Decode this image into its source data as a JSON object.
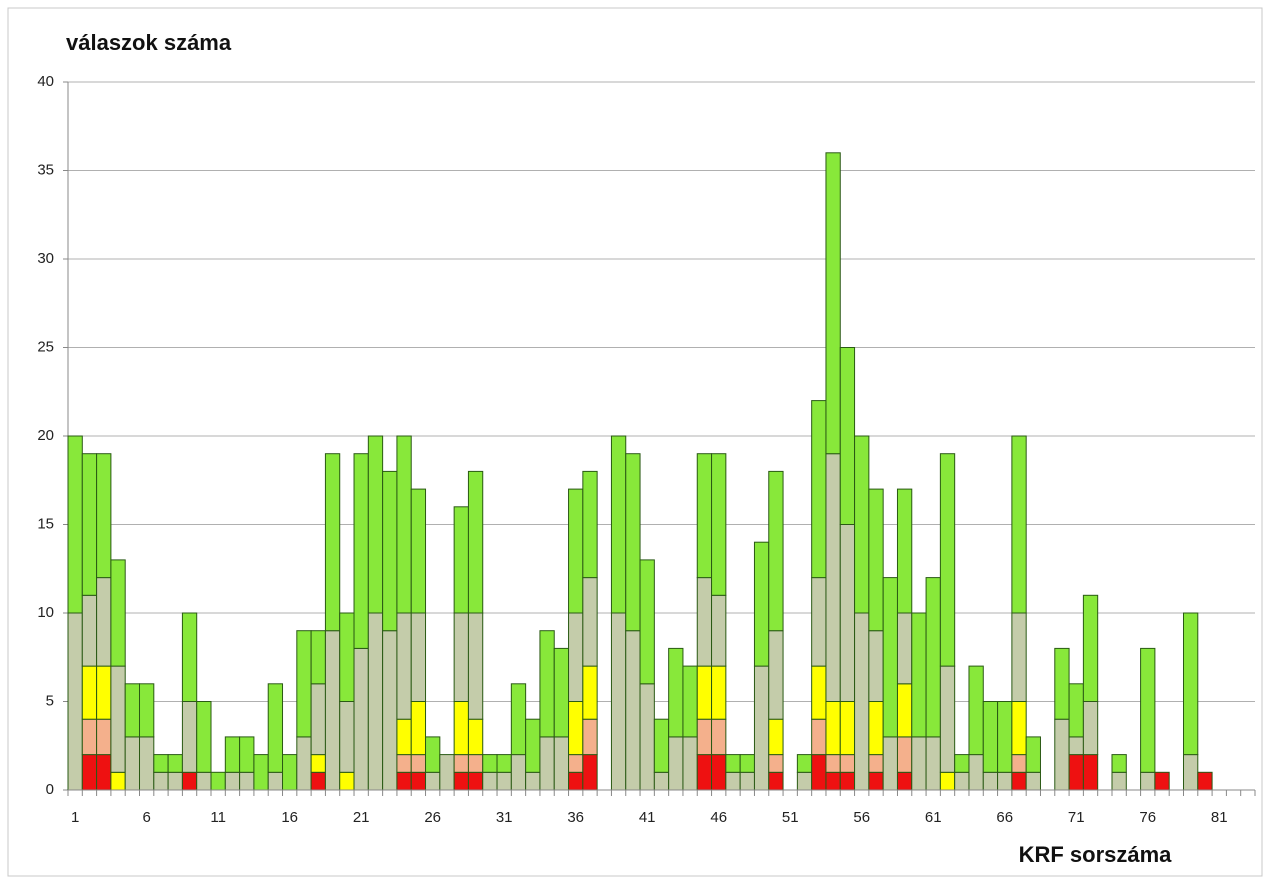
{
  "chart_data": {
    "type": "stacked_bar",
    "y_label": "válaszok száma",
    "x_label": "KRF sorszáma",
    "categories": [
      "1",
      null,
      null,
      null,
      null,
      "6",
      null,
      null,
      null,
      null,
      "11",
      null,
      null,
      null,
      null,
      "16",
      null,
      null,
      null,
      null,
      "21",
      null,
      null,
      null,
      null,
      "26",
      null,
      null,
      null,
      null,
      "31",
      null,
      null,
      null,
      null,
      "36",
      null,
      null,
      null,
      null,
      "41",
      null,
      null,
      null,
      null,
      "46",
      null,
      null,
      null,
      null,
      "51",
      null,
      null,
      null,
      null,
      "56",
      null,
      null,
      null,
      null,
      "61",
      null,
      null,
      null,
      null,
      "66",
      null,
      null,
      null,
      null,
      "71",
      null,
      null,
      null,
      null,
      "76",
      null,
      null,
      null,
      null,
      "81",
      null,
      null
    ],
    "series": [
      {
        "color": "#ee1111",
        "values": [
          0,
          2,
          2,
          0,
          0,
          0,
          0,
          0,
          1,
          0,
          0,
          0,
          0,
          0,
          0,
          0,
          0,
          1,
          0,
          0,
          0,
          0,
          0,
          1,
          1,
          0,
          0,
          1,
          1,
          0,
          0,
          0,
          0,
          0,
          0,
          1,
          2,
          0,
          0,
          0,
          0,
          0,
          0,
          0,
          2,
          2,
          0,
          0,
          0,
          1,
          0,
          0,
          2,
          1,
          1,
          0,
          1,
          0,
          1,
          0,
          0,
          0,
          0,
          0,
          0,
          0,
          1,
          0,
          0,
          0,
          2,
          2,
          0,
          0,
          0,
          0,
          1,
          0,
          0,
          1,
          0,
          0,
          0
        ]
      },
      {
        "color": "#f4b08c",
        "values": [
          0,
          2,
          2,
          0,
          0,
          0,
          0,
          0,
          0,
          0,
          0,
          0,
          0,
          0,
          0,
          0,
          0,
          0,
          0,
          0,
          0,
          0,
          0,
          1,
          1,
          0,
          0,
          1,
          1,
          0,
          0,
          0,
          0,
          0,
          0,
          1,
          2,
          0,
          0,
          0,
          0,
          0,
          0,
          0,
          2,
          2,
          0,
          0,
          0,
          1,
          0,
          0,
          2,
          1,
          1,
          0,
          1,
          0,
          2,
          0,
          0,
          0,
          0,
          0,
          0,
          0,
          1,
          0,
          0,
          0,
          0,
          0,
          0,
          0,
          0,
          0,
          0,
          0,
          0,
          0,
          0,
          0,
          0
        ]
      },
      {
        "color": "#ffff00",
        "values": [
          0,
          3,
          3,
          1,
          0,
          0,
          0,
          0,
          0,
          0,
          0,
          0,
          0,
          0,
          0,
          0,
          0,
          1,
          0,
          1,
          0,
          0,
          0,
          2,
          3,
          0,
          0,
          3,
          2,
          0,
          0,
          0,
          0,
          0,
          0,
          3,
          3,
          0,
          0,
          0,
          0,
          0,
          0,
          0,
          3,
          3,
          0,
          0,
          0,
          2,
          0,
          0,
          3,
          3,
          3,
          0,
          3,
          0,
          3,
          0,
          0,
          1,
          0,
          0,
          0,
          0,
          3,
          0,
          0,
          0,
          0,
          0,
          0,
          0,
          0,
          0,
          0,
          0,
          0,
          0,
          0,
          0,
          0
        ]
      },
      {
        "color": "#c4ccaa",
        "values": [
          10,
          4,
          5,
          6,
          3,
          3,
          1,
          1,
          4,
          1,
          0,
          1,
          1,
          0,
          1,
          0,
          3,
          4,
          9,
          4,
          8,
          10,
          9,
          6,
          5,
          1,
          2,
          5,
          6,
          1,
          1,
          2,
          1,
          3,
          3,
          5,
          5,
          0,
          10,
          9,
          6,
          1,
          3,
          3,
          5,
          4,
          1,
          1,
          7,
          5,
          0,
          1,
          5,
          14,
          10,
          10,
          4,
          3,
          4,
          3,
          3,
          6,
          1,
          2,
          1,
          1,
          5,
          1,
          0,
          4,
          1,
          3,
          0,
          1,
          0,
          1,
          0,
          0,
          2,
          0,
          0,
          0,
          0
        ]
      },
      {
        "color": "#88e83a",
        "values": [
          10,
          8,
          7,
          6,
          3,
          3,
          1,
          1,
          5,
          4,
          1,
          2,
          2,
          2,
          5,
          2,
          6,
          3,
          10,
          5,
          11,
          10,
          9,
          10,
          7,
          2,
          0,
          6,
          8,
          1,
          1,
          4,
          3,
          6,
          5,
          7,
          6,
          0,
          10,
          10,
          7,
          3,
          5,
          4,
          7,
          8,
          1,
          1,
          7,
          9,
          0,
          1,
          10,
          17,
          10,
          10,
          8,
          9,
          7,
          7,
          9,
          12,
          1,
          5,
          4,
          4,
          10,
          2,
          0,
          4,
          3,
          6,
          0,
          1,
          0,
          7,
          0,
          0,
          8,
          0,
          0,
          0,
          0
        ]
      }
    ],
    "ylim": [
      0,
      40
    ],
    "yticks": [
      0,
      5,
      10,
      15,
      20,
      25,
      30,
      35,
      40
    ],
    "grid": true
  }
}
